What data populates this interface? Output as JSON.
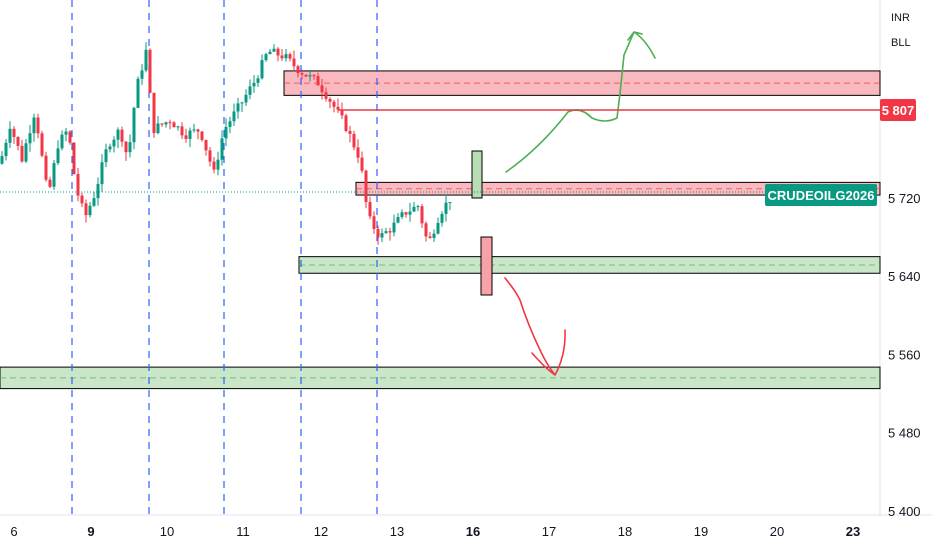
{
  "chart_data": {
    "type": "candlestick",
    "price_axis": {
      "ticks": [
        "5 400",
        "5 480",
        "5 560",
        "5 640",
        "5 720"
      ],
      "tick_values": [
        5400,
        5480,
        5560,
        5640,
        5720
      ]
    },
    "time_axis": {
      "labels": [
        "6",
        "9",
        "10",
        "11",
        "12",
        "13",
        "16",
        "17",
        "18",
        "19",
        "20",
        "23"
      ],
      "bold": [
        "9",
        "16",
        "23"
      ]
    },
    "currency": "INR",
    "unit": "BLL",
    "symbol_label": "CRUDEOILG2026",
    "last_price": 5720,
    "resistance_line": {
      "label": "5 807",
      "value": 5807,
      "color": "#f23645"
    },
    "zones": [
      {
        "kind": "supply",
        "low": 5825,
        "high": 5850,
        "color": "#f7a1a9"
      },
      {
        "kind": "supply",
        "low": 5723,
        "high": 5736,
        "color": "#f7a1a9"
      },
      {
        "kind": "demand",
        "low": 5643,
        "high": 5660,
        "color": "#b7deb5"
      },
      {
        "kind": "demand",
        "low": 5525,
        "high": 5547,
        "color": "#b7deb5"
      }
    ],
    "colors": {
      "up": "#089981",
      "down": "#f23645",
      "session_line": "#2962ff",
      "bull_arrow": "#4caf50",
      "bear_arrow": "#f23645"
    }
  }
}
